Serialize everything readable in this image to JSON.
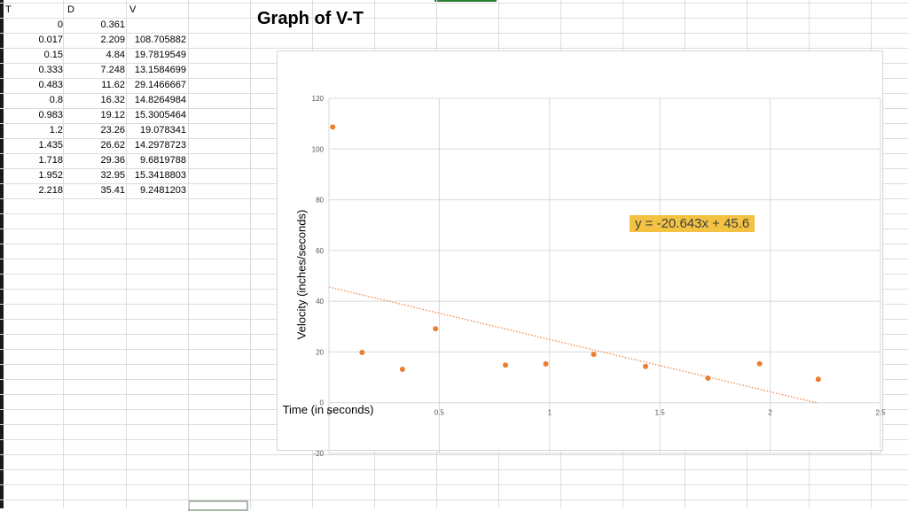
{
  "spreadsheet": {
    "columns": {
      "a": "T",
      "b": "D",
      "c": "V"
    },
    "rows": [
      {
        "t": "0",
        "d": "0.361",
        "v": ""
      },
      {
        "t": "0.017",
        "d": "2.209",
        "v": "108.705882"
      },
      {
        "t": "0.15",
        "d": "4.84",
        "v": "19.7819549"
      },
      {
        "t": "0.333",
        "d": "7.248",
        "v": "13.1584699"
      },
      {
        "t": "0.483",
        "d": "11.62",
        "v": "29.1466667"
      },
      {
        "t": "0.8",
        "d": "16.32",
        "v": "14.8264984"
      },
      {
        "t": "0.983",
        "d": "19.12",
        "v": "15.3005464"
      },
      {
        "t": "1.2",
        "d": "23.26",
        "v": "19.078341"
      },
      {
        "t": "1.435",
        "d": "26.62",
        "v": "14.2978723"
      },
      {
        "t": "1.718",
        "d": "29.36",
        "v": "9.6819788"
      },
      {
        "t": "1.952",
        "d": "32.95",
        "v": "15.3418803"
      },
      {
        "t": "2.218",
        "d": "35.41",
        "v": "9.2481203"
      }
    ]
  },
  "chart_data": {
    "type": "scatter",
    "title": "Graph of V-T",
    "xlabel": "Time (in seconds)",
    "ylabel": "Velocity (inches/seconds)",
    "xlim": [
      0,
      2.5
    ],
    "ylim": [
      -20,
      120
    ],
    "x_ticks": [
      "0",
      "0.5",
      "1",
      "1.5",
      "2",
      "2.5"
    ],
    "y_ticks": [
      "120",
      "100",
      "80",
      "60",
      "40",
      "20",
      "0",
      "-20"
    ],
    "x_tick_values": [
      0,
      0.5,
      1,
      1.5,
      2,
      2.5
    ],
    "y_tick_values": [
      120,
      100,
      80,
      60,
      40,
      20,
      0,
      -20
    ],
    "grid": true,
    "points": [
      {
        "x": 0.017,
        "y": 108.705882
      },
      {
        "x": 0.15,
        "y": 19.7819549
      },
      {
        "x": 0.333,
        "y": 13.1584699
      },
      {
        "x": 0.483,
        "y": 29.1466667
      },
      {
        "x": 0.8,
        "y": 14.8264984
      },
      {
        "x": 0.983,
        "y": 15.3005464
      },
      {
        "x": 1.2,
        "y": 19.078341
      },
      {
        "x": 1.435,
        "y": 14.2978723
      },
      {
        "x": 1.718,
        "y": 9.6819788
      },
      {
        "x": 1.952,
        "y": 15.3418803
      },
      {
        "x": 2.218,
        "y": 9.2481203
      }
    ],
    "trendline": {
      "slope": -20.643,
      "intercept": 45.6,
      "equation": "y = -20.643x + 45.6"
    },
    "colors": {
      "points": "#ed7d31",
      "trendline": "#ed7d31",
      "equation_bg": "#f4c242",
      "grid": "#d9d9d9"
    }
  }
}
